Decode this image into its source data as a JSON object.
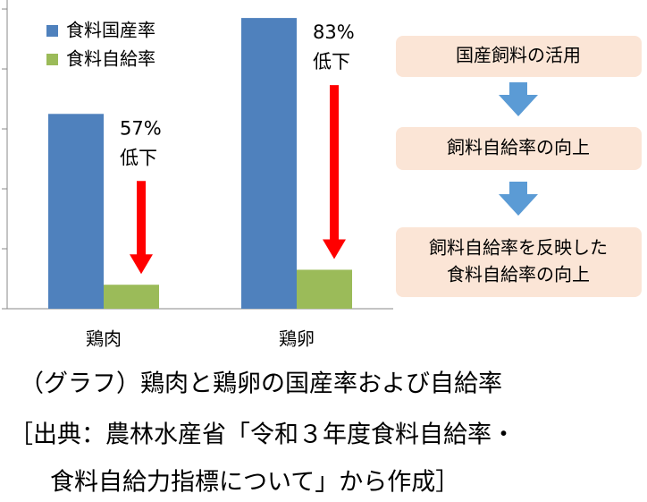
{
  "chart_data": {
    "type": "bar",
    "categories": [
      "鶏肉",
      "鶏卵"
    ],
    "series": [
      {
        "name": "食料国産率",
        "color": "#4f81bd",
        "values": [
          65,
          97
        ]
      },
      {
        "name": "食料自給率",
        "color": "#9bbb59",
        "values": [
          8,
          13
        ]
      }
    ],
    "ylim": [
      0,
      103
    ],
    "yticks": [
      0,
      20,
      40,
      60,
      80,
      100
    ],
    "annotations": [
      [
        "57%",
        "低下"
      ],
      [
        "83%",
        "低下"
      ]
    ]
  },
  "flow": {
    "steps": [
      [
        "国産飼料の活用"
      ],
      [
        "飼料自給率の向上"
      ],
      [
        "飼料自給率を反映した",
        "食料自給率の向上"
      ]
    ]
  },
  "caption": {
    "lines": [
      "（グラフ）鶏肉と鶏卵の国産率および自給率",
      "［出典：農林水産省「令和３年度食料自給率・",
      "食料自給力指標について」から作成］"
    ]
  }
}
